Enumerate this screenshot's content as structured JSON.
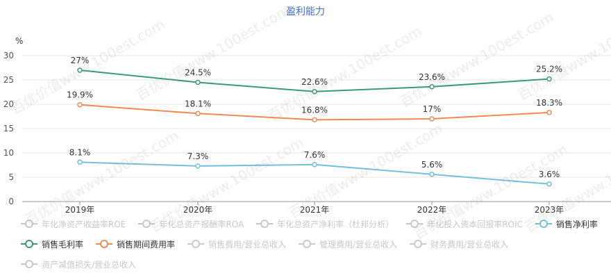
{
  "watermark_text": "百优价值www.100est.com",
  "colors": {
    "gross_margin": "#3a9c6e",
    "expense_ratio": "#f08a52",
    "net_margin": "#73bfdc",
    "inactive": "#c8c8c8",
    "title": "#3f6fd1",
    "grid": "#e6e6e6"
  },
  "chart_data": {
    "type": "line",
    "title": "盈利能力",
    "ylabel": "%",
    "xlabel": "",
    "ylim": [
      0,
      30
    ],
    "yticks": [
      0,
      5,
      10,
      15,
      20,
      25,
      30
    ],
    "grid": true,
    "categories": [
      "2019年",
      "2020年",
      "2021年",
      "2022年",
      "2023年"
    ],
    "series": [
      {
        "key": "gross_margin",
        "name": "销售毛利率",
        "values": [
          27,
          24.5,
          22.6,
          23.6,
          25.2
        ],
        "labels": [
          "27%",
          "24.5%",
          "22.6%",
          "23.6%",
          "25.2%"
        ]
      },
      {
        "key": "expense_ratio",
        "name": "销售期间费用率",
        "values": [
          19.9,
          18.1,
          16.8,
          17,
          18.3
        ],
        "labels": [
          "19.9%",
          "18.1%",
          "16.8%",
          "17%",
          "18.3%"
        ]
      },
      {
        "key": "net_margin",
        "name": "销售净利率",
        "values": [
          8.1,
          7.3,
          7.6,
          5.6,
          3.6
        ],
        "labels": [
          "8.1%",
          "7.3%",
          "7.6%",
          "5.6%",
          "3.6%"
        ]
      }
    ],
    "legend": {
      "placement": "bottom",
      "items": [
        {
          "name": "年化净资产收益率ROE",
          "active": false
        },
        {
          "name": "年化总资产报酬率ROA",
          "active": false
        },
        {
          "name": "年化总资产净利率（杜邦分析）",
          "active": false
        },
        {
          "name": "年化投入资本回报率ROIC",
          "active": false
        },
        {
          "name": "销售净利率",
          "active": true,
          "key": "net_margin"
        },
        {
          "name": "销售毛利率",
          "active": true,
          "key": "gross_margin"
        },
        {
          "name": "销售期间费用率",
          "active": true,
          "key": "expense_ratio"
        },
        {
          "name": "销售费用/营业总收入",
          "active": false
        },
        {
          "name": "管理费用/营业总收入",
          "active": false
        },
        {
          "name": "财务费用/营业总收入",
          "active": false
        },
        {
          "name": "资产减值损失/营业总收入",
          "active": false
        }
      ]
    }
  }
}
